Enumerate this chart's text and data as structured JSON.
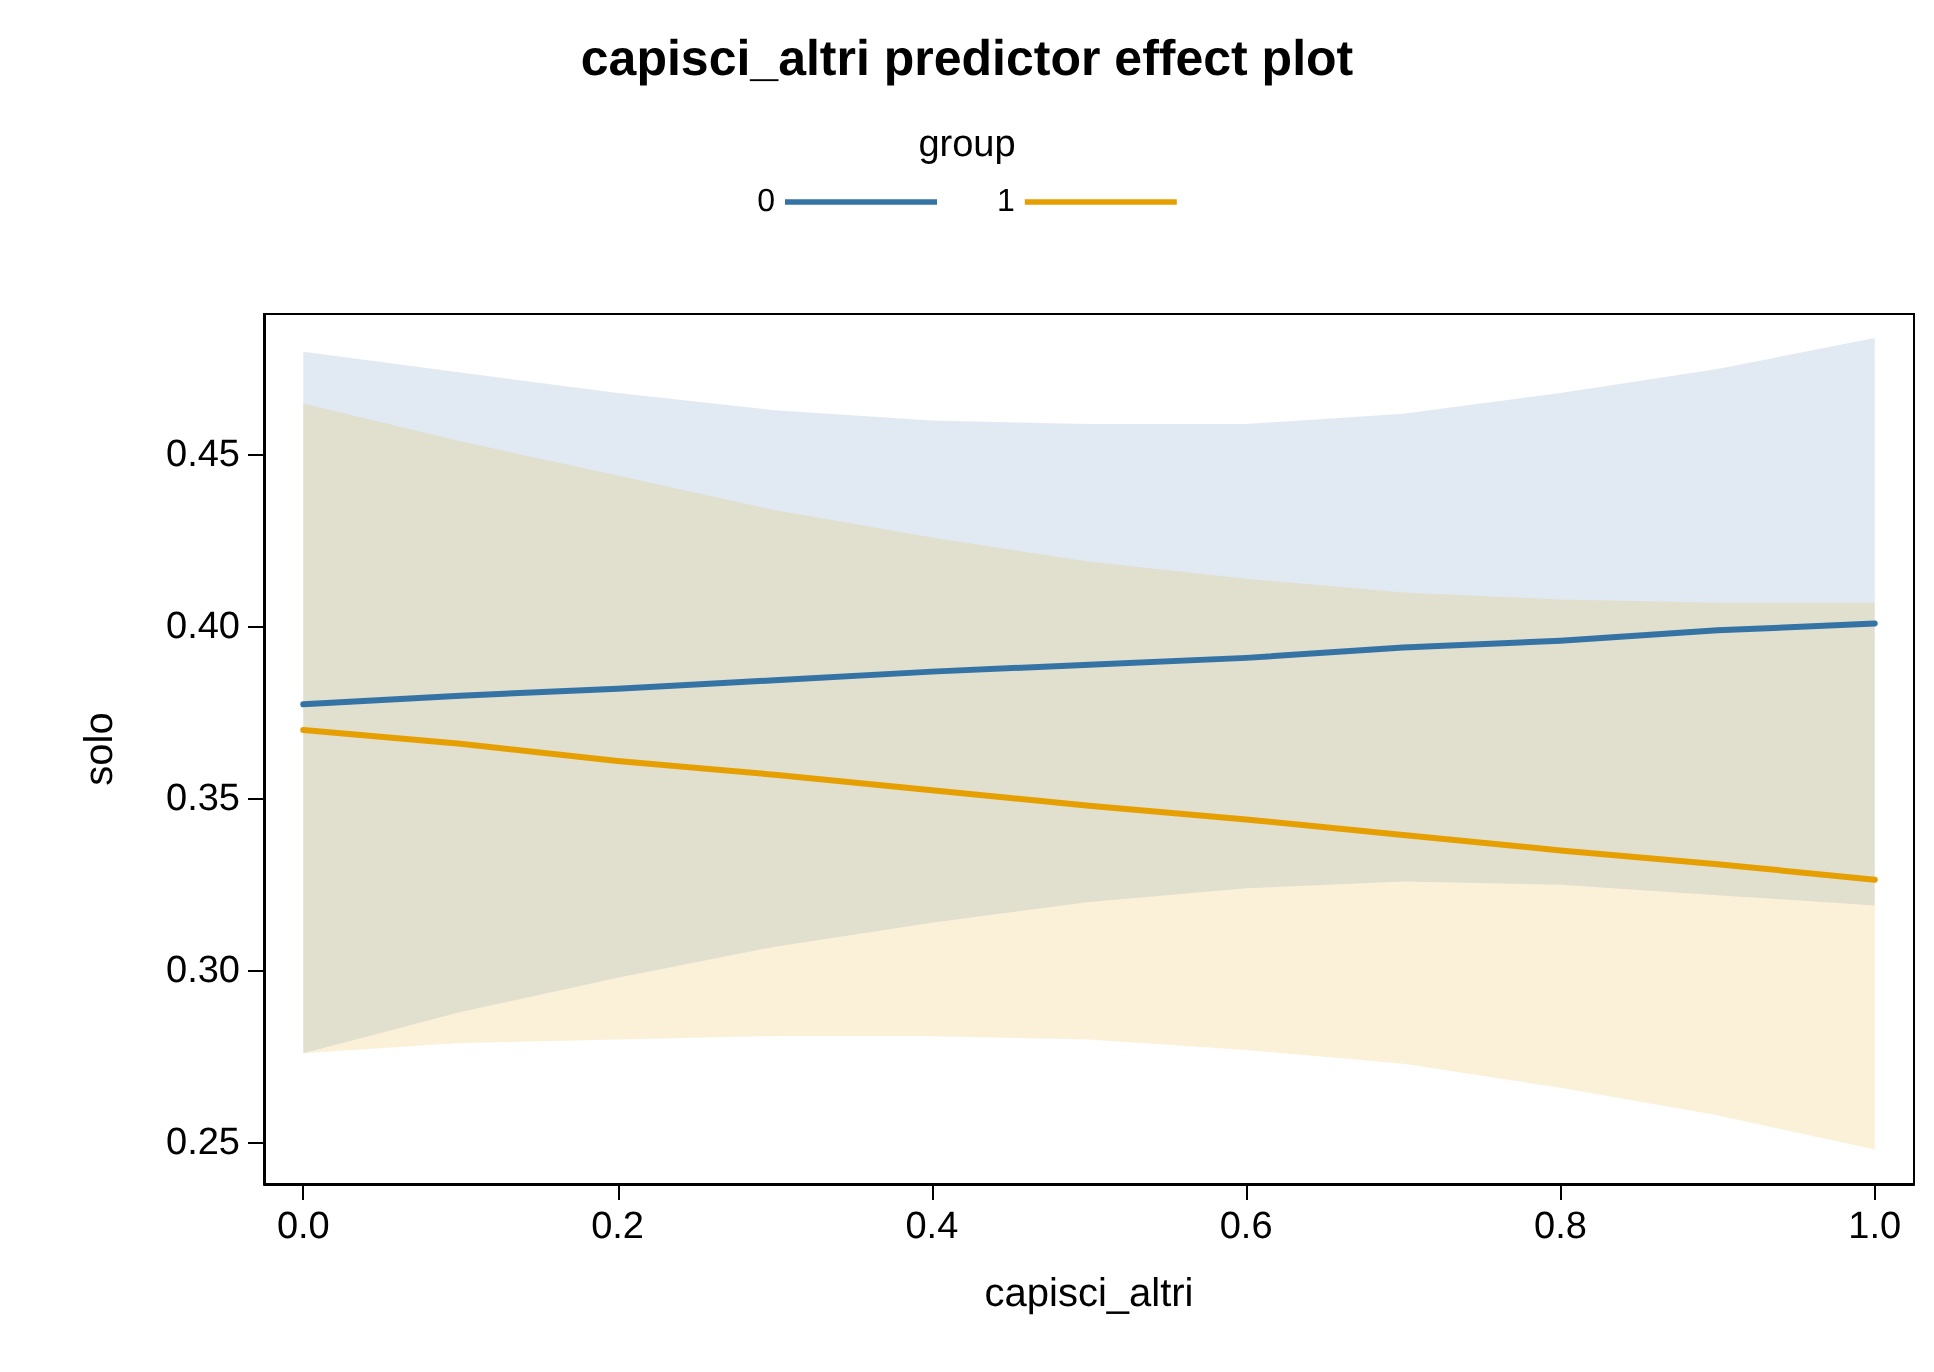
{
  "chart_data": {
    "type": "line",
    "title": "capisci_altri predictor effect plot",
    "xlabel": "capisci_altri",
    "ylabel": "solo",
    "legend_title": "group",
    "legend": "top",
    "xlim": [
      -0.025,
      1.025
    ],
    "xticks": [
      {
        "value": 0,
        "label": "0.0"
      },
      0.2,
      0.4,
      0.6,
      0.8,
      {
        "value": 1,
        "label": "1.0"
      }
    ],
    "ylim": [
      0.238,
      0.491
    ],
    "yticks": [
      0.25,
      {
        "value": 0.3,
        "label": "0.30"
      },
      0.35,
      {
        "value": 0.4,
        "label": "0.40"
      },
      0.45
    ],
    "grid": false,
    "marker": "none",
    "line_style": "solid",
    "x": [
      0,
      0.1,
      0.2,
      0.3,
      0.4,
      0.5,
      0.6,
      0.7,
      0.8,
      0.9,
      1
    ],
    "series": [
      {
        "name": "0",
        "color": "#3573a5",
        "values": [
          0.3775,
          0.38,
          0.382,
          0.3845,
          0.387,
          0.389,
          0.391,
          0.394,
          0.396,
          0.399,
          0.401
        ],
        "lower": [
          0.276,
          0.288,
          0.298,
          0.307,
          0.314,
          0.32,
          0.324,
          0.326,
          0.325,
          0.322,
          0.319
        ],
        "upper": [
          0.48,
          0.474,
          0.468,
          0.463,
          0.46,
          0.459,
          0.459,
          0.462,
          0.468,
          0.475,
          0.484
        ]
      },
      {
        "name": "1",
        "color": "#e69f00",
        "values": [
          0.37,
          0.366,
          0.361,
          0.357,
          0.3525,
          0.348,
          0.344,
          0.3395,
          0.335,
          0.331,
          0.3265
        ],
        "lower": [
          0.276,
          0.279,
          0.28,
          0.281,
          0.281,
          0.28,
          0.277,
          0.273,
          0.266,
          0.258,
          0.248
        ],
        "upper": [
          0.465,
          0.454,
          0.444,
          0.434,
          0.426,
          0.419,
          0.414,
          0.41,
          0.408,
          0.407,
          0.407
        ]
      }
    ]
  }
}
